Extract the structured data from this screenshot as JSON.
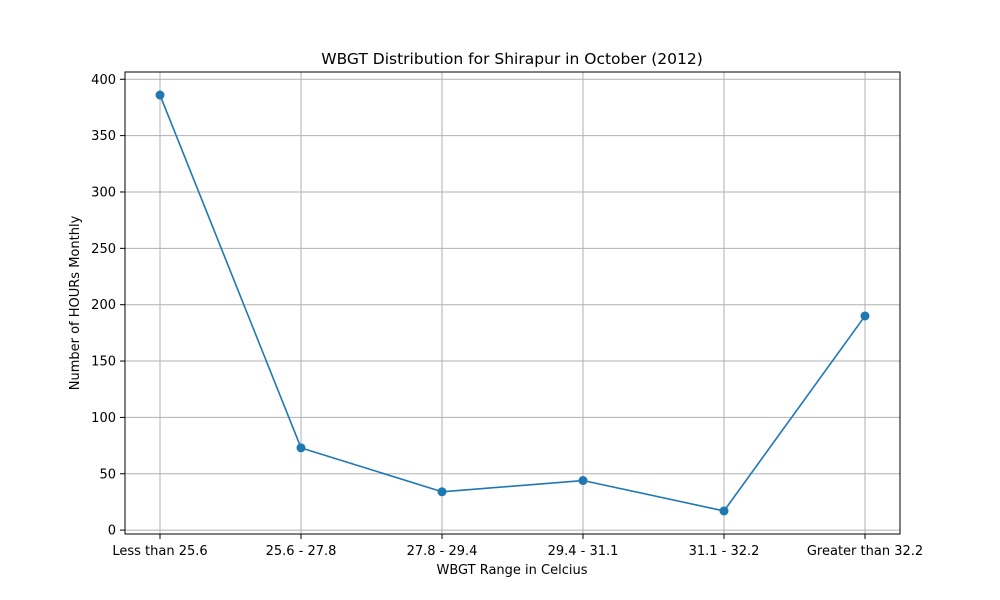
{
  "chart_data": {
    "type": "line",
    "title": "WBGT Distribution for Shirapur in October (2012)",
    "xlabel": "WBGT Range in Celcius",
    "ylabel": "Number of HOURs Monthly",
    "categories": [
      "Less than 25.6",
      "25.6 - 27.8",
      "27.8 - 29.4",
      "29.4 - 31.1",
      "31.1 - 32.2",
      "Greater than 32.2"
    ],
    "series": [
      {
        "values": [
          386,
          73,
          34,
          44,
          17,
          190
        ],
        "color": "#1f77b4",
        "marker": "circle"
      }
    ],
    "ylim": [
      -3.45,
      406.45
    ],
    "yticks": [
      0,
      50,
      100,
      150,
      200,
      250,
      300,
      350,
      400
    ],
    "grid": true
  }
}
